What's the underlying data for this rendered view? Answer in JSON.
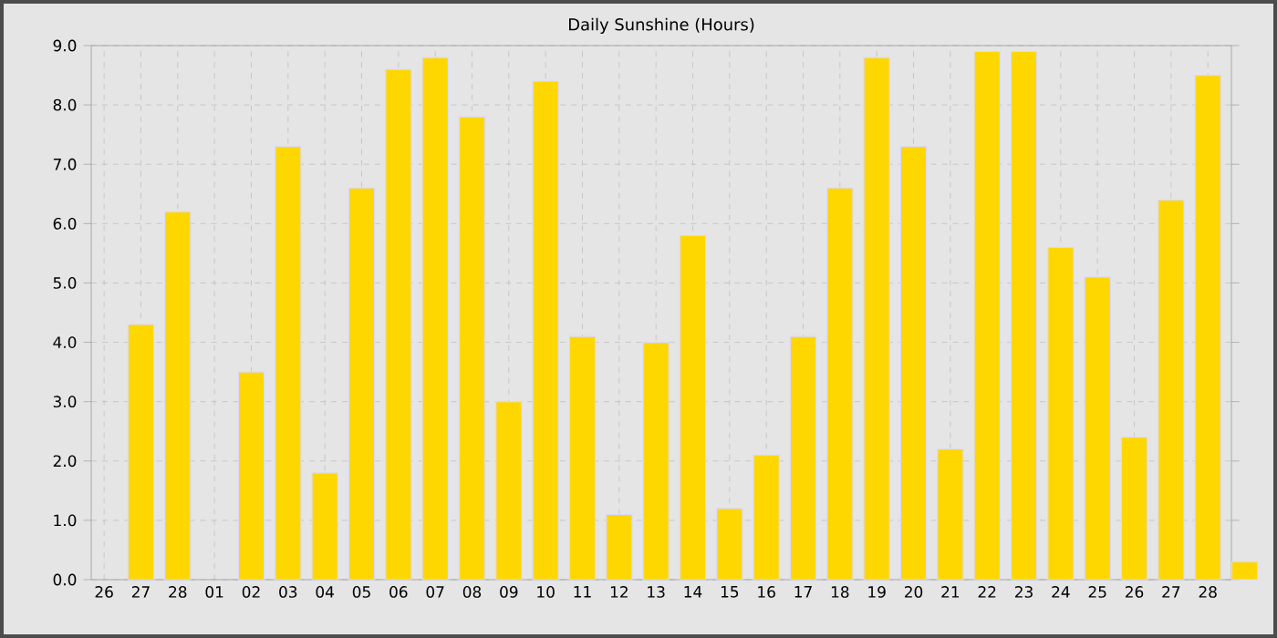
{
  "chart_data": {
    "type": "bar",
    "title": "Daily Sunshine (Hours)",
    "categories": [
      "26",
      "27",
      "28",
      "01",
      "02",
      "03",
      "04",
      "05",
      "06",
      "07",
      "08",
      "09",
      "10",
      "11",
      "12",
      "13",
      "14",
      "15",
      "16",
      "17",
      "18",
      "19",
      "20",
      "21",
      "22",
      "23",
      "24",
      "25",
      "26",
      "27",
      "28",
      null
    ],
    "values": [
      null,
      4.3,
      6.2,
      null,
      3.5,
      7.3,
      1.8,
      6.6,
      8.6,
      8.8,
      7.8,
      3.0,
      8.4,
      4.1,
      1.1,
      4.0,
      5.8,
      1.2,
      2.1,
      4.1,
      6.6,
      8.8,
      7.3,
      2.2,
      8.9,
      8.9,
      5.6,
      5.1,
      2.4,
      6.4,
      8.5,
      0.3
    ],
    "color": "#ffd700",
    "ylim": [
      0,
      9
    ],
    "yticks": [
      {
        "value": 0,
        "label": "0.0"
      },
      {
        "value": 1,
        "label": "1.0"
      },
      {
        "value": 2,
        "label": "2.0"
      },
      {
        "value": 3,
        "label": "3.0"
      },
      {
        "value": 4,
        "label": "4.0"
      },
      {
        "value": 5,
        "label": "5.0"
      },
      {
        "value": 6,
        "label": "6.0"
      },
      {
        "value": 7,
        "label": "7.0"
      },
      {
        "value": 8,
        "label": "8.0"
      },
      {
        "value": 9,
        "label": "9.0"
      }
    ],
    "grid": true
  }
}
